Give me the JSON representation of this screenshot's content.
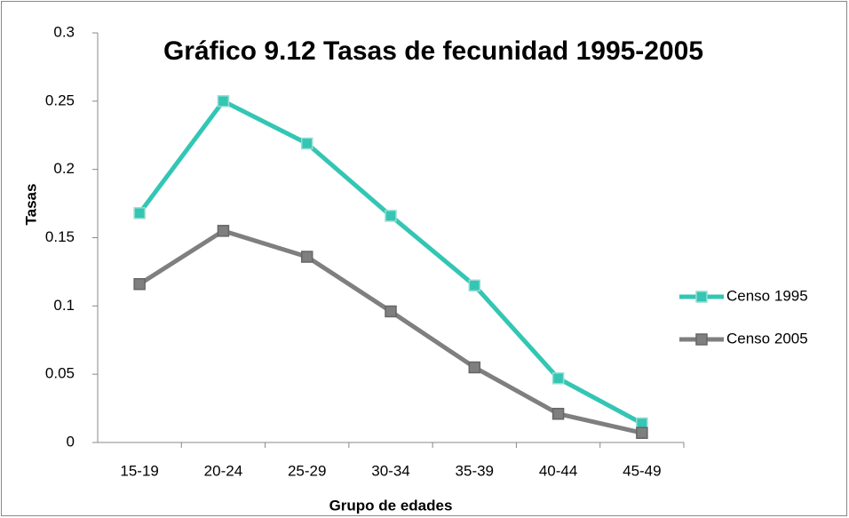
{
  "chart_data": {
    "type": "line",
    "title": "Gráfico 9.12 Tasas de fecunidad 1995-2005",
    "x_label": "Grupo de edades",
    "y_label": "Tasas",
    "categories": [
      "15-19",
      "20-24",
      "25-29",
      "30-34",
      "35-39",
      "40-44",
      "45-49"
    ],
    "series": [
      {
        "name": "Censo 1995",
        "color": "#33c6b4",
        "values": [
          0.168,
          0.25,
          0.219,
          0.166,
          0.115,
          0.047,
          0.014
        ]
      },
      {
        "name": "Censo 2005",
        "color": "#7f7f7f",
        "values": [
          0.116,
          0.155,
          0.136,
          0.096,
          0.055,
          0.021,
          0.007
        ]
      }
    ],
    "ylim": [
      0,
      0.3
    ],
    "yticks": [
      0,
      0.05,
      0.1,
      0.15,
      0.2,
      0.25,
      0.3
    ],
    "grid": false,
    "legend": "right"
  }
}
